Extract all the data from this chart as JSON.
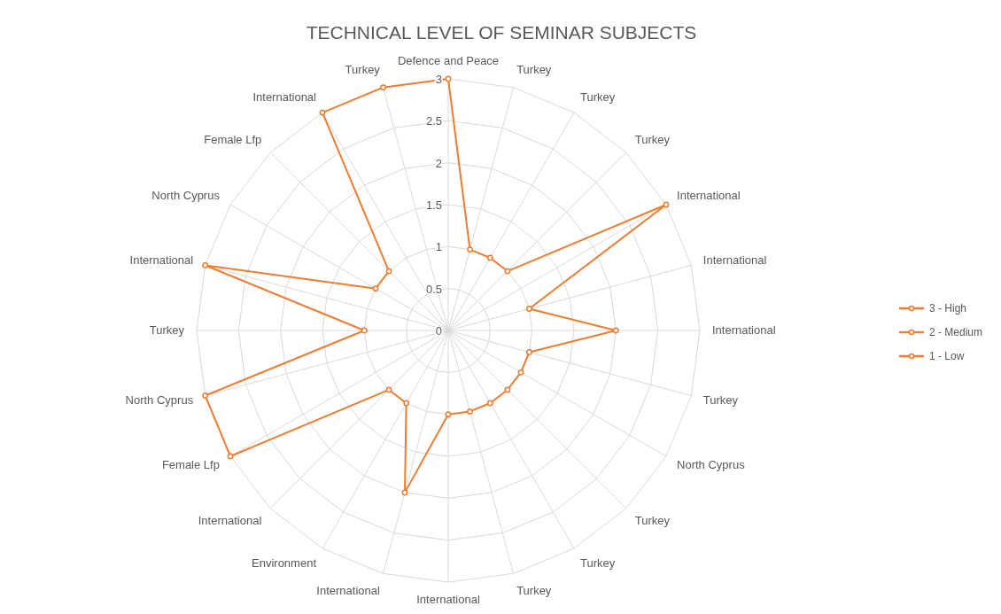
{
  "chart_data": {
    "type": "radar",
    "title": "TECHNICAL LEVEL OF SEMINAR SUBJECTS",
    "categories": [
      "Defence and Peace",
      "Turkey",
      "Turkey",
      "Turkey",
      "International",
      "International",
      "International",
      "Turkey",
      "North Cyprus",
      "Turkey",
      "Turkey",
      "Turkey",
      "International",
      "International",
      "Environment",
      "International",
      "Female Lfp",
      "North Cyprus",
      "Turkey",
      "International",
      "North Cyprus",
      "Female Lfp",
      "International",
      "Turkey"
    ],
    "series": [
      {
        "name": "3 - High",
        "color": "#ed7d31",
        "values": [
          3,
          1,
          1,
          1,
          3,
          1,
          2,
          1,
          1,
          1,
          1,
          1,
          1,
          2,
          1,
          1,
          3,
          3,
          1,
          3,
          1,
          1,
          3,
          3
        ]
      },
      {
        "name": "2 - Medium",
        "color": "#ed7d31",
        "values": [
          null,
          null,
          null,
          null,
          null,
          null,
          null,
          null,
          null,
          null,
          null,
          null,
          null,
          null,
          null,
          null,
          null,
          null,
          null,
          null,
          null,
          null,
          null,
          null
        ]
      },
      {
        "name": "1 - Low",
        "color": "#ed7d31",
        "values": [
          null,
          null,
          null,
          null,
          null,
          null,
          null,
          null,
          null,
          null,
          null,
          null,
          null,
          null,
          null,
          null,
          null,
          null,
          null,
          null,
          null,
          null,
          null,
          null
        ]
      }
    ],
    "ylim": [
      0,
      3
    ],
    "yticks": [
      0,
      0.5,
      1,
      1.5,
      2,
      2.5,
      3
    ],
    "grid": true,
    "legend": "right",
    "marker": "circle"
  }
}
